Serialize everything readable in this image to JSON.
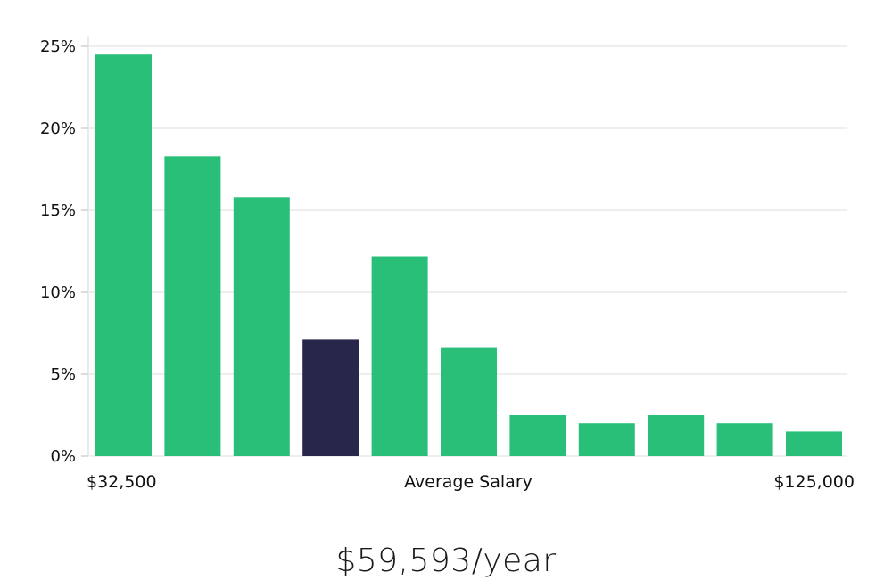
{
  "chart_data": {
    "type": "bar",
    "values": [
      24.5,
      18.3,
      15.8,
      7.1,
      12.2,
      6.6,
      2.5,
      2.0,
      2.5,
      2.0,
      1.5
    ],
    "highlight_index": 3,
    "ylim": [
      0,
      25
    ],
    "yticks": [
      "0%",
      "5%",
      "10%",
      "15%",
      "20%",
      "25%"
    ],
    "ytick_values": [
      0,
      5,
      10,
      15,
      20,
      25
    ],
    "x_min_label": "$32,500",
    "x_center_label": "Average Salary",
    "x_max_label": "$125,000",
    "grid": true,
    "colors": {
      "bar": "#2abf78",
      "highlight": "#28264a",
      "grid": "#dcdcdc"
    }
  },
  "summary": {
    "salary": "$59,593/year"
  }
}
